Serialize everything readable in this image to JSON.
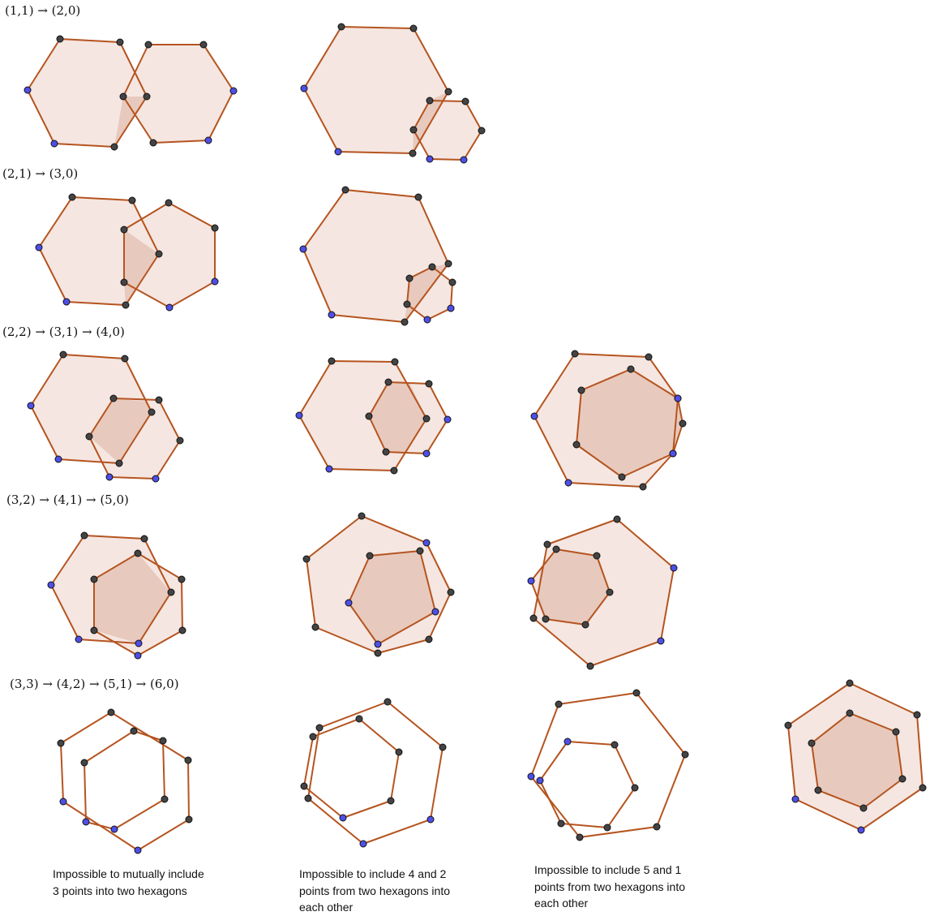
{
  "row_labels": [
    "(1,1) → (2,0)",
    "(2,1) → (3,0)",
    "(2,2) → (3,1) → (4,0)",
    "(3,2) → (4,1) → (5,0)",
    "(3,3) → (4,2) → (5,1) → (6,0)"
  ],
  "captions": [
    [
      "Impossible to mutually include",
      "3 points into two hexagons"
    ],
    [
      "Impossible to include 4 and 2",
      "points from two hexagons into",
      "each other"
    ],
    [
      "Impossible to include 5 and 1",
      "points from two hexagons into",
      "each other"
    ]
  ],
  "colors": {
    "edge": "#b5541f",
    "fill": "#f5e6e1",
    "overlap_fill": "#e8c9bd",
    "inner_point": "#444444",
    "outer_point": "#4f4fe6"
  }
}
